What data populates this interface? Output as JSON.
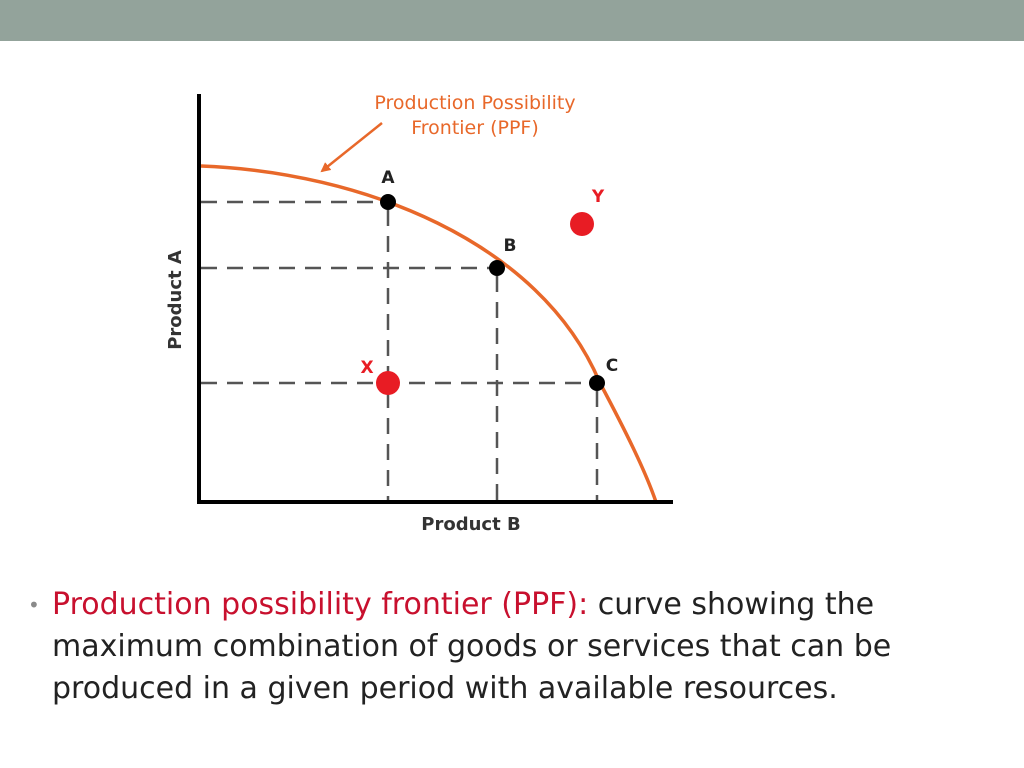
{
  "slide": {
    "top_bar_color": "#93a39b"
  },
  "diagram": {
    "curve_color": "#e8682a",
    "point_color": "#000000",
    "outside_point_color": "#e81c24",
    "curve_label_line1": "Production Possibility",
    "curve_label_line2": "Frontier (PPF)",
    "y_axis_label": "Product A",
    "x_axis_label": "Product B",
    "points": {
      "a": "A",
      "b": "B",
      "c": "C",
      "x": "X",
      "y": "Y"
    }
  },
  "bullet": {
    "term": "Production possibility frontier (PPF):",
    "definition": " curve showing the maximum combination of goods or services that can be produced in a given period with available resources."
  }
}
